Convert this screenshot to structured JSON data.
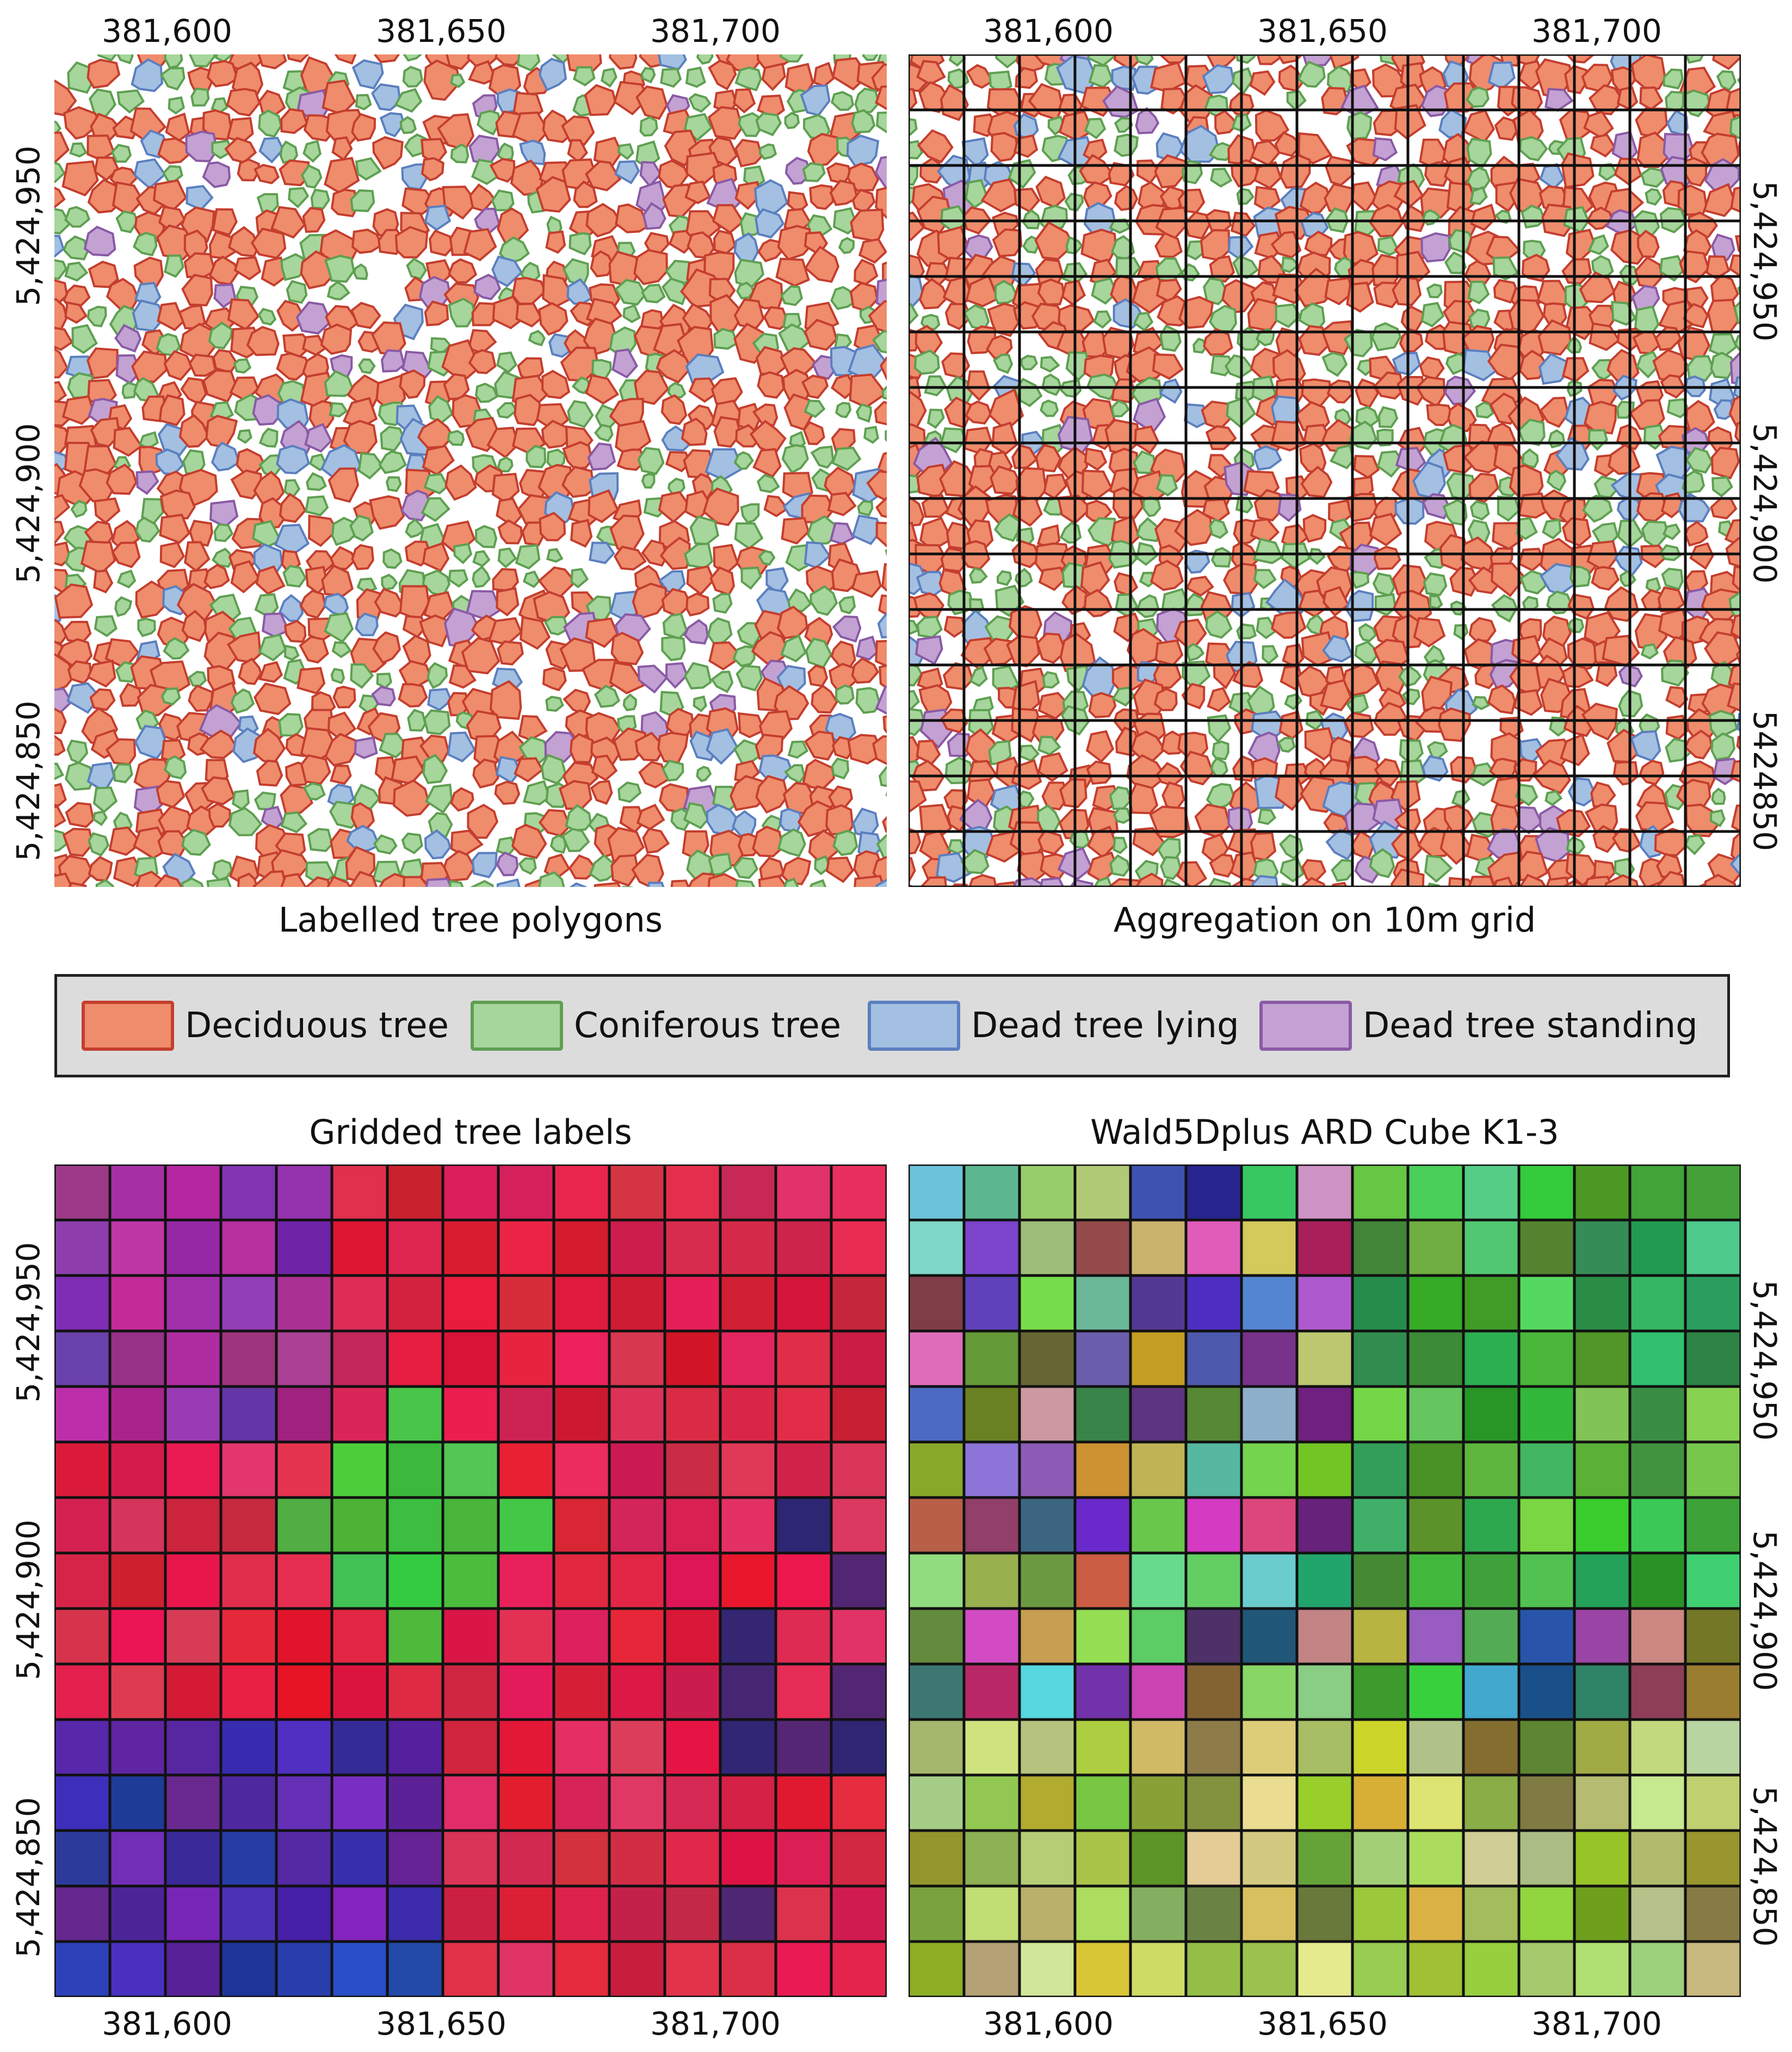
{
  "panels": {
    "top_left": {
      "caption": "Labelled tree polygons",
      "x_ticks": [
        "381,600",
        "381,650",
        "381,700"
      ],
      "y_ticks": [
        "5,424,950",
        "5,424,900",
        "5,424,850"
      ]
    },
    "top_right": {
      "caption": "Aggregation on 10m grid",
      "x_ticks": [
        "381,600",
        "381,650",
        "381,700"
      ],
      "y_ticks": [
        "5,424,950",
        "5,424,900",
        "5424850"
      ]
    },
    "bottom_left": {
      "caption": "Gridded tree labels",
      "x_ticks": [
        "381,600",
        "381,650",
        "381,700"
      ],
      "y_ticks": [
        "5,424,950",
        "5,424,900",
        "5,424,850"
      ]
    },
    "bottom_right": {
      "caption": "Wald5Dplus ARD Cube K1-3",
      "x_ticks": [
        "381,600",
        "381,650",
        "381,700"
      ],
      "y_ticks": [
        "5,424,950",
        "5,424,900",
        "5,424,850"
      ]
    }
  },
  "legend": {
    "items": [
      {
        "label": "Deciduous tree",
        "fill": "#ef8c6c",
        "stroke": "#c43e2e"
      },
      {
        "label": "Coniferous tree",
        "fill": "#a6d69b",
        "stroke": "#5f9f52"
      },
      {
        "label": "Dead tree lying",
        "fill": "#a3c0e2",
        "stroke": "#5b7fbf"
      },
      {
        "label": "Dead tree standing",
        "fill": "#c3a2d3",
        "stroke": "#8a5aa5"
      }
    ]
  },
  "colors": {
    "deciduous": "#ef8c6c",
    "coniferous": "#a6d69b",
    "dead_lying": "#a3c0e2",
    "dead_standing": "#c3a2d3",
    "grid_line": "#111111"
  }
}
